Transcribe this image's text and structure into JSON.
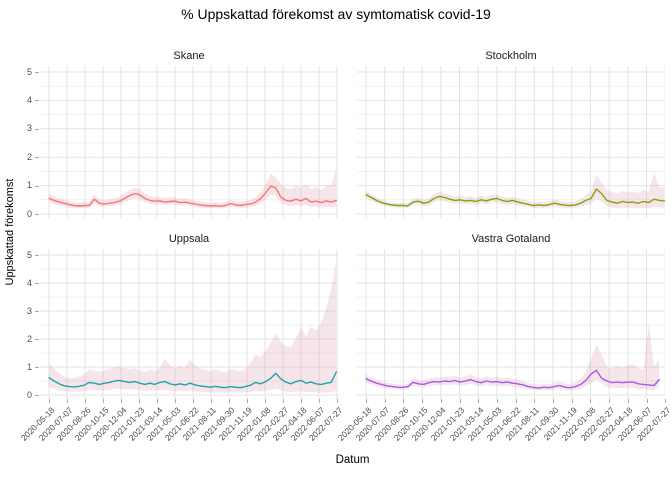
{
  "title": "% Uppskattad förekomst av symtomatisk covid-19",
  "axes": {
    "x_title": "Datum",
    "y_title": "Uppskattad förekomst",
    "y_tick_labels": [
      "0",
      "1",
      "2",
      "3",
      "4",
      "5"
    ],
    "x_tick_labels": [
      "2020-05-18",
      "2020-07-07",
      "2020-08-26",
      "2020-10-15",
      "2020-12-04",
      "2021-01-23",
      "2021-03-14",
      "2021-05-03",
      "2021-06-22",
      "2021-08-11",
      "2021-09-30",
      "2021-11-19",
      "2022-01-08",
      "2022-02-27",
      "2022-04-18",
      "2022-06-07",
      "2022-07-27"
    ]
  },
  "style": {
    "band_fill": "#D68FAA",
    "band_opacity": 0.22,
    "grid_major": "#E3E3E3",
    "grid_minor": "#F1F1F1",
    "tick_color": "#A8A8A8",
    "axis_text_color": "#4D4D4D",
    "line_width": 1.4
  },
  "chart_data": {
    "type": "line",
    "title": "% Uppskattad förekomst av symtomatisk covid-19",
    "xlabel": "Datum",
    "ylabel": "Uppskattad förekomst",
    "ylim": [
      0,
      5
    ],
    "x_range_days": [
      0,
      800
    ],
    "x_start_date": "2020-05-18",
    "x_end_date": "2022-07-27",
    "grid": true,
    "legend": "none",
    "facets": [
      {
        "name": "Skane",
        "color": "#F8766D",
        "days": [
          0,
          14,
          28,
          42,
          56,
          70,
          84,
          98,
          112,
          126,
          140,
          154,
          168,
          182,
          196,
          210,
          224,
          238,
          252,
          266,
          280,
          294,
          308,
          322,
          336,
          350,
          364,
          378,
          392,
          406,
          420,
          434,
          448,
          462,
          476,
          490,
          504,
          518,
          532,
          546,
          560,
          574,
          588,
          602,
          616,
          630,
          644,
          658,
          672,
          686,
          700,
          714,
          728,
          742,
          756,
          770,
          784,
          798
        ],
        "mid": [
          0.55,
          0.48,
          0.42,
          0.38,
          0.33,
          0.3,
          0.28,
          0.3,
          0.3,
          0.52,
          0.38,
          0.35,
          0.38,
          0.4,
          0.45,
          0.55,
          0.65,
          0.72,
          0.68,
          0.55,
          0.48,
          0.45,
          0.46,
          0.42,
          0.44,
          0.45,
          0.4,
          0.42,
          0.38,
          0.35,
          0.32,
          0.3,
          0.28,
          0.3,
          0.27,
          0.3,
          0.37,
          0.32,
          0.3,
          0.33,
          0.35,
          0.42,
          0.55,
          0.75,
          0.98,
          0.92,
          0.6,
          0.48,
          0.45,
          0.52,
          0.46,
          0.55,
          0.42,
          0.45,
          0.4,
          0.46,
          0.42,
          0.48
        ],
        "low": [
          0.4,
          0.35,
          0.3,
          0.27,
          0.23,
          0.21,
          0.19,
          0.21,
          0.21,
          0.38,
          0.27,
          0.25,
          0.27,
          0.29,
          0.33,
          0.41,
          0.5,
          0.56,
          0.52,
          0.42,
          0.36,
          0.34,
          0.34,
          0.31,
          0.33,
          0.33,
          0.29,
          0.31,
          0.28,
          0.25,
          0.23,
          0.21,
          0.2,
          0.21,
          0.19,
          0.21,
          0.27,
          0.23,
          0.21,
          0.23,
          0.24,
          0.29,
          0.38,
          0.52,
          0.68,
          0.62,
          0.4,
          0.3,
          0.27,
          0.31,
          0.27,
          0.32,
          0.24,
          0.26,
          0.22,
          0.25,
          0.22,
          0.24
        ],
        "high": [
          0.72,
          0.63,
          0.56,
          0.51,
          0.45,
          0.42,
          0.4,
          0.43,
          0.42,
          0.7,
          0.52,
          0.48,
          0.52,
          0.55,
          0.62,
          0.73,
          0.84,
          0.93,
          0.88,
          0.72,
          0.63,
          0.6,
          0.61,
          0.56,
          0.59,
          0.6,
          0.54,
          0.56,
          0.51,
          0.47,
          0.44,
          0.41,
          0.39,
          0.42,
          0.38,
          0.42,
          0.5,
          0.45,
          0.42,
          0.46,
          0.5,
          0.6,
          0.78,
          1.05,
          1.42,
          1.3,
          1.05,
          0.92,
          0.88,
          1.0,
          0.92,
          1.05,
          0.88,
          0.95,
          0.85,
          0.98,
          1.02,
          1.6
        ]
      },
      {
        "name": "Stockholm",
        "color": "#7CA800",
        "days": [
          0,
          14,
          28,
          42,
          56,
          70,
          84,
          98,
          112,
          126,
          140,
          154,
          168,
          182,
          196,
          210,
          224,
          238,
          252,
          266,
          280,
          294,
          308,
          322,
          336,
          350,
          364,
          378,
          392,
          406,
          420,
          434,
          448,
          462,
          476,
          490,
          504,
          518,
          532,
          546,
          560,
          574,
          588,
          602,
          616,
          630,
          644,
          658,
          672,
          686,
          700,
          714,
          728,
          742,
          756,
          770,
          784,
          798
        ],
        "mid": [
          0.68,
          0.58,
          0.48,
          0.4,
          0.35,
          0.32,
          0.3,
          0.3,
          0.29,
          0.42,
          0.45,
          0.38,
          0.42,
          0.55,
          0.62,
          0.58,
          0.52,
          0.48,
          0.5,
          0.46,
          0.48,
          0.44,
          0.5,
          0.46,
          0.52,
          0.55,
          0.48,
          0.44,
          0.48,
          0.42,
          0.38,
          0.34,
          0.3,
          0.32,
          0.3,
          0.33,
          0.38,
          0.34,
          0.31,
          0.3,
          0.32,
          0.38,
          0.48,
          0.55,
          0.88,
          0.72,
          0.48,
          0.42,
          0.38,
          0.44,
          0.4,
          0.42,
          0.38,
          0.44,
          0.4,
          0.52,
          0.48,
          0.46
        ],
        "low": [
          0.56,
          0.47,
          0.38,
          0.31,
          0.27,
          0.24,
          0.22,
          0.22,
          0.21,
          0.32,
          0.34,
          0.28,
          0.31,
          0.42,
          0.48,
          0.45,
          0.4,
          0.36,
          0.38,
          0.34,
          0.36,
          0.32,
          0.37,
          0.34,
          0.39,
          0.41,
          0.35,
          0.32,
          0.35,
          0.3,
          0.27,
          0.24,
          0.21,
          0.22,
          0.21,
          0.23,
          0.27,
          0.23,
          0.21,
          0.2,
          0.21,
          0.25,
          0.32,
          0.36,
          0.55,
          0.44,
          0.28,
          0.24,
          0.2,
          0.24,
          0.21,
          0.22,
          0.19,
          0.22,
          0.19,
          0.26,
          0.23,
          0.22
        ],
        "high": [
          0.82,
          0.7,
          0.59,
          0.5,
          0.44,
          0.41,
          0.39,
          0.39,
          0.38,
          0.54,
          0.58,
          0.5,
          0.55,
          0.7,
          0.78,
          0.74,
          0.66,
          0.61,
          0.64,
          0.6,
          0.62,
          0.57,
          0.64,
          0.6,
          0.67,
          0.7,
          0.62,
          0.57,
          0.62,
          0.55,
          0.5,
          0.46,
          0.41,
          0.44,
          0.41,
          0.45,
          0.51,
          0.47,
          0.43,
          0.42,
          0.45,
          0.54,
          0.68,
          0.8,
          1.38,
          1.1,
          0.85,
          0.78,
          0.72,
          0.82,
          0.76,
          0.8,
          0.74,
          0.85,
          0.78,
          1.45,
          0.95,
          0.92
        ]
      },
      {
        "name": "Uppsala",
        "color": "#20A2A6",
        "days": [
          0,
          14,
          28,
          42,
          56,
          70,
          84,
          98,
          112,
          126,
          140,
          154,
          168,
          182,
          196,
          210,
          224,
          238,
          252,
          266,
          280,
          294,
          308,
          322,
          336,
          350,
          364,
          378,
          392,
          406,
          420,
          434,
          448,
          462,
          476,
          490,
          504,
          518,
          532,
          546,
          560,
          574,
          588,
          602,
          616,
          630,
          644,
          658,
          672,
          686,
          700,
          714,
          728,
          742,
          756,
          770,
          784,
          798
        ],
        "mid": [
          0.62,
          0.5,
          0.4,
          0.33,
          0.3,
          0.29,
          0.31,
          0.35,
          0.45,
          0.42,
          0.38,
          0.42,
          0.45,
          0.5,
          0.52,
          0.48,
          0.45,
          0.48,
          0.42,
          0.38,
          0.42,
          0.38,
          0.45,
          0.48,
          0.4,
          0.36,
          0.4,
          0.36,
          0.42,
          0.36,
          0.32,
          0.3,
          0.28,
          0.31,
          0.28,
          0.26,
          0.3,
          0.28,
          0.26,
          0.3,
          0.35,
          0.45,
          0.4,
          0.48,
          0.6,
          0.78,
          0.58,
          0.46,
          0.4,
          0.48,
          0.52,
          0.42,
          0.46,
          0.4,
          0.38,
          0.42,
          0.45,
          0.82
        ],
        "low": [
          0.28,
          0.22,
          0.17,
          0.13,
          0.12,
          0.11,
          0.12,
          0.14,
          0.19,
          0.17,
          0.15,
          0.17,
          0.19,
          0.22,
          0.23,
          0.21,
          0.19,
          0.21,
          0.17,
          0.15,
          0.17,
          0.15,
          0.18,
          0.19,
          0.15,
          0.13,
          0.15,
          0.13,
          0.16,
          0.13,
          0.11,
          0.1,
          0.09,
          0.1,
          0.09,
          0.08,
          0.1,
          0.09,
          0.08,
          0.09,
          0.11,
          0.14,
          0.12,
          0.14,
          0.18,
          0.24,
          0.16,
          0.12,
          0.1,
          0.12,
          0.13,
          0.1,
          0.11,
          0.09,
          0.08,
          0.09,
          0.09,
          0.15
        ],
        "high": [
          1.12,
          0.95,
          0.78,
          0.66,
          0.6,
          0.6,
          0.66,
          0.75,
          0.92,
          0.88,
          0.82,
          0.88,
          0.92,
          1.0,
          1.02,
          0.96,
          0.92,
          0.96,
          0.88,
          0.82,
          0.9,
          0.85,
          0.98,
          1.32,
          1.05,
          0.95,
          1.05,
          1.0,
          1.25,
          1.05,
          0.95,
          0.9,
          0.85,
          0.92,
          0.85,
          0.8,
          0.92,
          0.88,
          0.85,
          0.95,
          1.15,
          1.45,
          1.35,
          1.6,
          1.85,
          2.2,
          1.9,
          1.75,
          1.7,
          2.05,
          2.4,
          2.1,
          2.45,
          2.3,
          2.6,
          3.1,
          3.8,
          4.85
        ]
      },
      {
        "name": "Vastra Gotaland",
        "color": "#A958EC",
        "days": [
          0,
          14,
          28,
          42,
          56,
          70,
          84,
          98,
          112,
          126,
          140,
          154,
          168,
          182,
          196,
          210,
          224,
          238,
          252,
          266,
          280,
          294,
          308,
          322,
          336,
          350,
          364,
          378,
          392,
          406,
          420,
          434,
          448,
          462,
          476,
          490,
          504,
          518,
          532,
          546,
          560,
          574,
          588,
          602,
          616,
          630,
          644,
          658,
          672,
          686,
          700,
          714,
          728,
          742,
          756,
          770,
          784
        ],
        "mid": [
          0.58,
          0.5,
          0.42,
          0.38,
          0.33,
          0.3,
          0.28,
          0.27,
          0.3,
          0.45,
          0.4,
          0.38,
          0.44,
          0.48,
          0.46,
          0.5,
          0.48,
          0.52,
          0.46,
          0.5,
          0.55,
          0.48,
          0.44,
          0.5,
          0.46,
          0.48,
          0.44,
          0.46,
          0.42,
          0.4,
          0.36,
          0.3,
          0.27,
          0.25,
          0.28,
          0.26,
          0.3,
          0.34,
          0.28,
          0.26,
          0.3,
          0.38,
          0.52,
          0.75,
          0.88,
          0.6,
          0.5,
          0.44,
          0.46,
          0.44,
          0.46,
          0.46,
          0.4,
          0.38,
          0.36,
          0.34,
          0.55
        ],
        "low": [
          0.44,
          0.37,
          0.31,
          0.27,
          0.23,
          0.21,
          0.19,
          0.18,
          0.21,
          0.33,
          0.29,
          0.27,
          0.32,
          0.35,
          0.33,
          0.37,
          0.35,
          0.38,
          0.33,
          0.36,
          0.4,
          0.34,
          0.31,
          0.36,
          0.32,
          0.34,
          0.31,
          0.32,
          0.29,
          0.27,
          0.24,
          0.2,
          0.17,
          0.16,
          0.18,
          0.16,
          0.19,
          0.22,
          0.17,
          0.16,
          0.18,
          0.23,
          0.31,
          0.4,
          0.55,
          0.42,
          0.28,
          0.25,
          0.26,
          0.25,
          0.26,
          0.26,
          0.21,
          0.2,
          0.19,
          0.18,
          0.28
        ],
        "high": [
          0.74,
          0.64,
          0.55,
          0.5,
          0.44,
          0.41,
          0.38,
          0.37,
          0.41,
          0.6,
          0.54,
          0.52,
          0.59,
          0.64,
          0.62,
          0.67,
          0.65,
          0.7,
          0.62,
          0.68,
          0.74,
          0.65,
          0.6,
          0.68,
          0.62,
          0.65,
          0.6,
          0.62,
          0.57,
          0.55,
          0.5,
          0.43,
          0.39,
          0.36,
          0.4,
          0.38,
          0.44,
          0.49,
          0.41,
          0.38,
          0.45,
          0.6,
          0.85,
          1.3,
          1.8,
          1.45,
          1.0,
          0.95,
          1.05,
          0.98,
          1.05,
          1.1,
          0.95,
          0.92,
          2.55,
          1.0,
          1.3
        ]
      }
    ]
  }
}
